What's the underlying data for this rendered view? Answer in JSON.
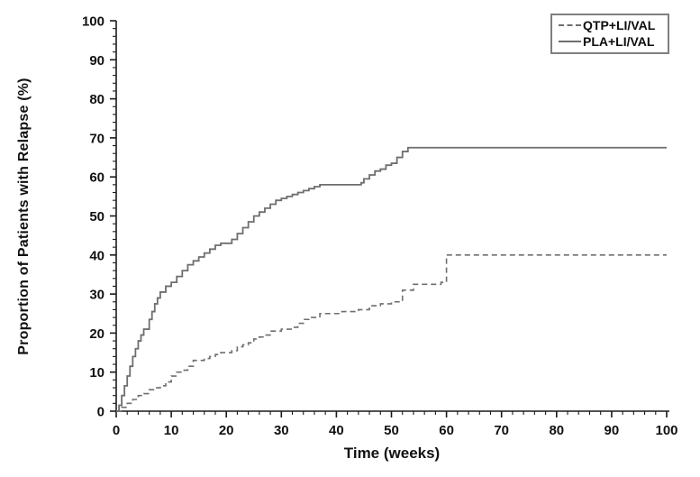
{
  "chart_data": {
    "type": "line",
    "subtype": "step-kaplan-meier",
    "title": "",
    "xlabel": "Time (weeks)",
    "ylabel": "Proportion of Patients with Relapse (%)",
    "xlim": [
      0,
      100
    ],
    "ylim": [
      0,
      100
    ],
    "x_ticks_major": [
      0,
      10,
      20,
      30,
      40,
      50,
      60,
      70,
      80,
      90,
      100
    ],
    "y_ticks_major": [
      0,
      10,
      20,
      30,
      40,
      50,
      60,
      70,
      80,
      90,
      100
    ],
    "minor_tick_step": 2,
    "grid": false,
    "legend_position": "top-right-inside",
    "axis_color": "#1a1a1a",
    "series": [
      {
        "name": "QTP+LI/VAL",
        "style": "dashed",
        "color": "#6e6e6e",
        "points": [
          [
            0,
            0
          ],
          [
            1,
            1
          ],
          [
            2,
            2
          ],
          [
            3,
            3
          ],
          [
            4,
            4
          ],
          [
            5,
            4.5
          ],
          [
            6,
            5.5
          ],
          [
            7,
            6
          ],
          [
            8,
            6.5
          ],
          [
            9,
            7.5
          ],
          [
            10,
            9
          ],
          [
            11,
            10
          ],
          [
            12,
            10.5
          ],
          [
            13,
            11.5
          ],
          [
            14,
            13
          ],
          [
            16,
            13.5
          ],
          [
            17,
            14
          ],
          [
            18,
            14.5
          ],
          [
            19,
            15
          ],
          [
            21,
            15.5
          ],
          [
            22,
            16.5
          ],
          [
            23,
            17
          ],
          [
            24,
            17.5
          ],
          [
            25,
            18.5
          ],
          [
            26,
            19
          ],
          [
            27,
            19.5
          ],
          [
            28,
            20.5
          ],
          [
            30,
            21
          ],
          [
            32,
            21.5
          ],
          [
            33,
            22.5
          ],
          [
            34,
            23.5
          ],
          [
            35,
            24
          ],
          [
            37,
            25
          ],
          [
            41,
            25.5
          ],
          [
            44,
            26
          ],
          [
            46,
            27
          ],
          [
            48,
            27.5
          ],
          [
            50,
            28
          ],
          [
            52,
            31
          ],
          [
            54,
            32.5
          ],
          [
            59,
            33
          ],
          [
            60,
            40
          ],
          [
            100,
            40
          ]
        ]
      },
      {
        "name": "PLA+LI/VAL",
        "style": "solid",
        "color": "#6e6e6e",
        "points": [
          [
            0,
            0
          ],
          [
            0.5,
            1.5
          ],
          [
            1,
            4
          ],
          [
            1.5,
            6.5
          ],
          [
            2,
            9
          ],
          [
            2.5,
            11.5
          ],
          [
            3,
            14
          ],
          [
            3.5,
            16
          ],
          [
            4,
            18
          ],
          [
            4.5,
            19.5
          ],
          [
            5,
            21
          ],
          [
            6,
            23.5
          ],
          [
            6.5,
            25.5
          ],
          [
            7,
            27.5
          ],
          [
            7.5,
            29
          ],
          [
            8,
            30.5
          ],
          [
            9,
            32
          ],
          [
            10,
            33
          ],
          [
            11,
            34.5
          ],
          [
            12,
            36
          ],
          [
            13,
            37.5
          ],
          [
            14,
            38.5
          ],
          [
            15,
            39.5
          ],
          [
            16,
            40.5
          ],
          [
            17,
            41.5
          ],
          [
            18,
            42.5
          ],
          [
            19,
            43
          ],
          [
            21,
            44
          ],
          [
            22,
            45.5
          ],
          [
            23,
            47
          ],
          [
            24,
            48.5
          ],
          [
            25,
            50
          ],
          [
            26,
            51
          ],
          [
            27,
            52
          ],
          [
            28,
            53
          ],
          [
            29,
            54
          ],
          [
            30,
            54.5
          ],
          [
            31,
            55
          ],
          [
            32,
            55.5
          ],
          [
            33,
            56
          ],
          [
            34,
            56.5
          ],
          [
            35,
            57
          ],
          [
            36,
            57.5
          ],
          [
            37,
            58
          ],
          [
            44.5,
            58.5
          ],
          [
            45,
            59.5
          ],
          [
            46,
            60.5
          ],
          [
            47,
            61.5
          ],
          [
            48,
            62
          ],
          [
            49,
            63
          ],
          [
            50,
            63.5
          ],
          [
            51,
            65
          ],
          [
            52,
            66.5
          ],
          [
            53,
            67.5
          ],
          [
            100,
            67.5
          ]
        ]
      }
    ]
  },
  "axes": {
    "xlabel": "Time (weeks)",
    "ylabel": "Proportion of Patients with Relapse (%)"
  },
  "legend": {
    "items": [
      {
        "label": "QTP+LI/VAL",
        "style": "dashed"
      },
      {
        "label": "PLA+LI/VAL",
        "style": "solid"
      }
    ]
  }
}
